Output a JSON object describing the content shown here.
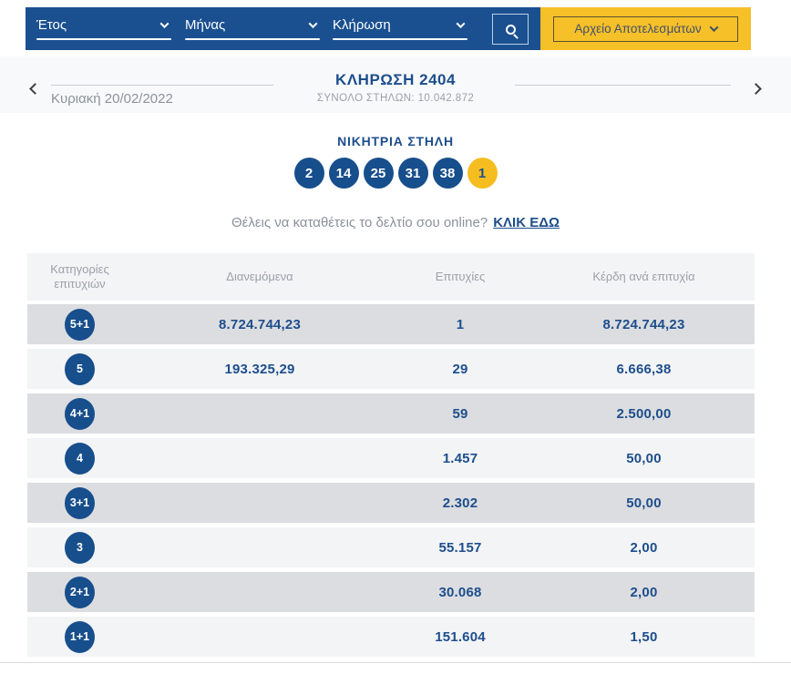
{
  "colors": {
    "navy": "#1a5090",
    "yellow": "#f5c028",
    "text_navy": "#1d4e8c",
    "joker_yellow": "#f5bd20",
    "row_light": "#f3f4f6",
    "row_dark": "#dcdde0"
  },
  "topbar": {
    "filters": [
      {
        "label": "Έτος"
      },
      {
        "label": "Μήνας"
      },
      {
        "label": "Κλήρωση"
      }
    ],
    "archive_button_label": "Αρχείο Αποτελεσμάτων"
  },
  "draw_nav": {
    "prev_date": "Κυριακή 20/02/2022",
    "title": "ΚΛΗΡΩΣΗ 2404",
    "subtitle": "ΣΥΝΟΛΟ ΣΤΗΛΩΝ: 10.042.872"
  },
  "winning": {
    "title": "ΝΙΚΗΤΡΙΑ ΣΤΗΛΗ",
    "numbers": [
      "2",
      "14",
      "25",
      "31",
      "38"
    ],
    "joker": "1"
  },
  "cta": {
    "text": "Θέλεις να καταθέτεις το δελτίο σου online?",
    "link_label": "ΚΛΙΚ ΕΔΩ"
  },
  "table": {
    "headers": [
      "Κατηγορίες επιτυχιών",
      "Διανεμόμενα",
      "Επιτυχίες",
      "Κέρδη ανά επιτυχία"
    ],
    "rows": [
      {
        "category": "5+1",
        "distributed": "8.724.744,23",
        "winners": "1",
        "prize": "8.724.744,23"
      },
      {
        "category": "5",
        "distributed": "193.325,29",
        "winners": "29",
        "prize": "6.666,38"
      },
      {
        "category": "4+1",
        "distributed": "",
        "winners": "59",
        "prize": "2.500,00"
      },
      {
        "category": "4",
        "distributed": "",
        "winners": "1.457",
        "prize": "50,00"
      },
      {
        "category": "3+1",
        "distributed": "",
        "winners": "2.302",
        "prize": "50,00"
      },
      {
        "category": "3",
        "distributed": "",
        "winners": "55.157",
        "prize": "2,00"
      },
      {
        "category": "2+1",
        "distributed": "",
        "winners": "30.068",
        "prize": "2,00"
      },
      {
        "category": "1+1",
        "distributed": "",
        "winners": "151.604",
        "prize": "1,50"
      }
    ]
  }
}
